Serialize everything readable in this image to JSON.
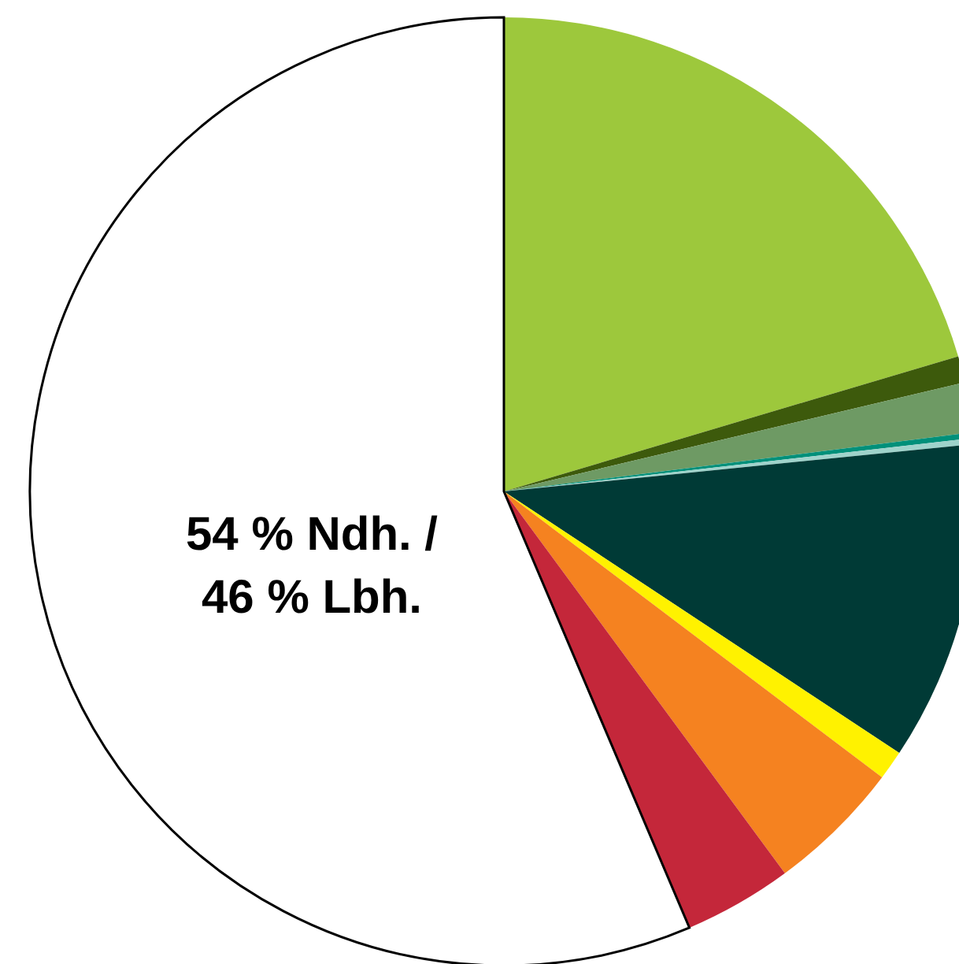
{
  "chart_data": {
    "type": "pie",
    "categories": [
      null,
      null,
      null,
      null,
      null,
      null,
      null,
      null,
      null,
      null
    ],
    "values": [
      20.4,
      0.9,
      1.7,
      0.2,
      0.2,
      10.9,
      1.0,
      4.6,
      3.7,
      56.4
    ],
    "colors": [
      "#9dc83c",
      "#3d5a0c",
      "#6e9a64",
      "#00907a",
      "#9fd3cb",
      "#003a36",
      "#fff200",
      "#f58220",
      "#c4273a",
      "#ffffff"
    ],
    "annotations": [
      "54 % Ndh. /\n46 % Lbh."
    ]
  }
}
